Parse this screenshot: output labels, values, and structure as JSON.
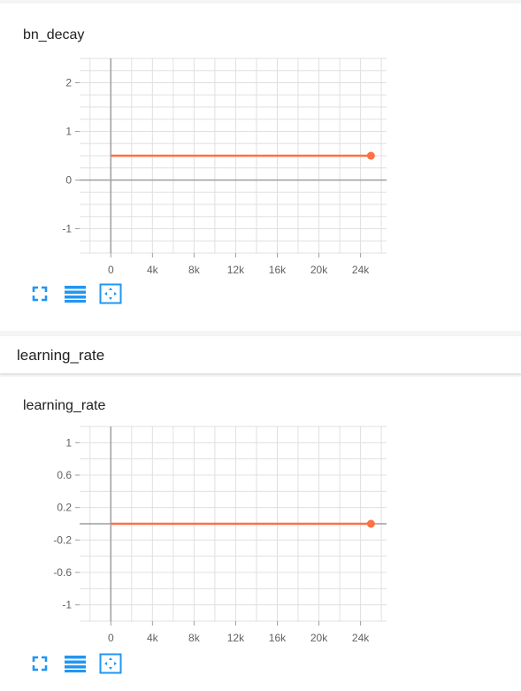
{
  "colors": {
    "series": "#ff7043",
    "grid": "#e0e0e0",
    "axis": "#9e9e9e",
    "icon": "#2196f3"
  },
  "section": {
    "title": "learning_rate"
  },
  "toolbar": {
    "icons": [
      "expand-icon",
      "list-icon",
      "fit-domain-icon"
    ]
  },
  "chart_data": [
    {
      "type": "line",
      "title": "bn_decay",
      "x": [
        0,
        25000
      ],
      "y": [
        0.5,
        0.5
      ],
      "xlim": [
        -3000,
        26500
      ],
      "ylim": [
        -1.5,
        2.5
      ],
      "xticks": [
        0,
        4000,
        8000,
        12000,
        16000,
        20000,
        24000
      ],
      "xtick_labels": [
        "0",
        "4k",
        "8k",
        "12k",
        "16k",
        "20k",
        "24k"
      ],
      "yticks": [
        -1,
        0,
        1,
        2
      ],
      "ytick_labels": [
        "-1",
        "0",
        "1",
        "2"
      ],
      "ygrid": [
        -1.5,
        -1.25,
        -1,
        -0.75,
        -0.5,
        -0.25,
        0,
        0.25,
        0.5,
        0.75,
        1,
        1.25,
        1.5,
        1.75,
        2,
        2.25,
        2.5
      ],
      "grid": true
    },
    {
      "type": "line",
      "title": "learning_rate",
      "x": [
        0,
        25000
      ],
      "y": [
        0.0,
        0.0
      ],
      "xlim": [
        -3000,
        26500
      ],
      "ylim": [
        -1.2,
        1.2
      ],
      "xticks": [
        0,
        4000,
        8000,
        12000,
        16000,
        20000,
        24000
      ],
      "xtick_labels": [
        "0",
        "4k",
        "8k",
        "12k",
        "16k",
        "20k",
        "24k"
      ],
      "yticks": [
        -1,
        -0.6,
        -0.2,
        0.2,
        0.6,
        1
      ],
      "ytick_labels": [
        "-1",
        "-0.6",
        "-0.2",
        "0.2",
        "0.6",
        "1"
      ],
      "ygrid": [
        -1.2,
        -1,
        -0.8,
        -0.6,
        -0.4,
        -0.2,
        0,
        0.2,
        0.4,
        0.6,
        0.8,
        1,
        1.2
      ],
      "grid": true
    }
  ]
}
